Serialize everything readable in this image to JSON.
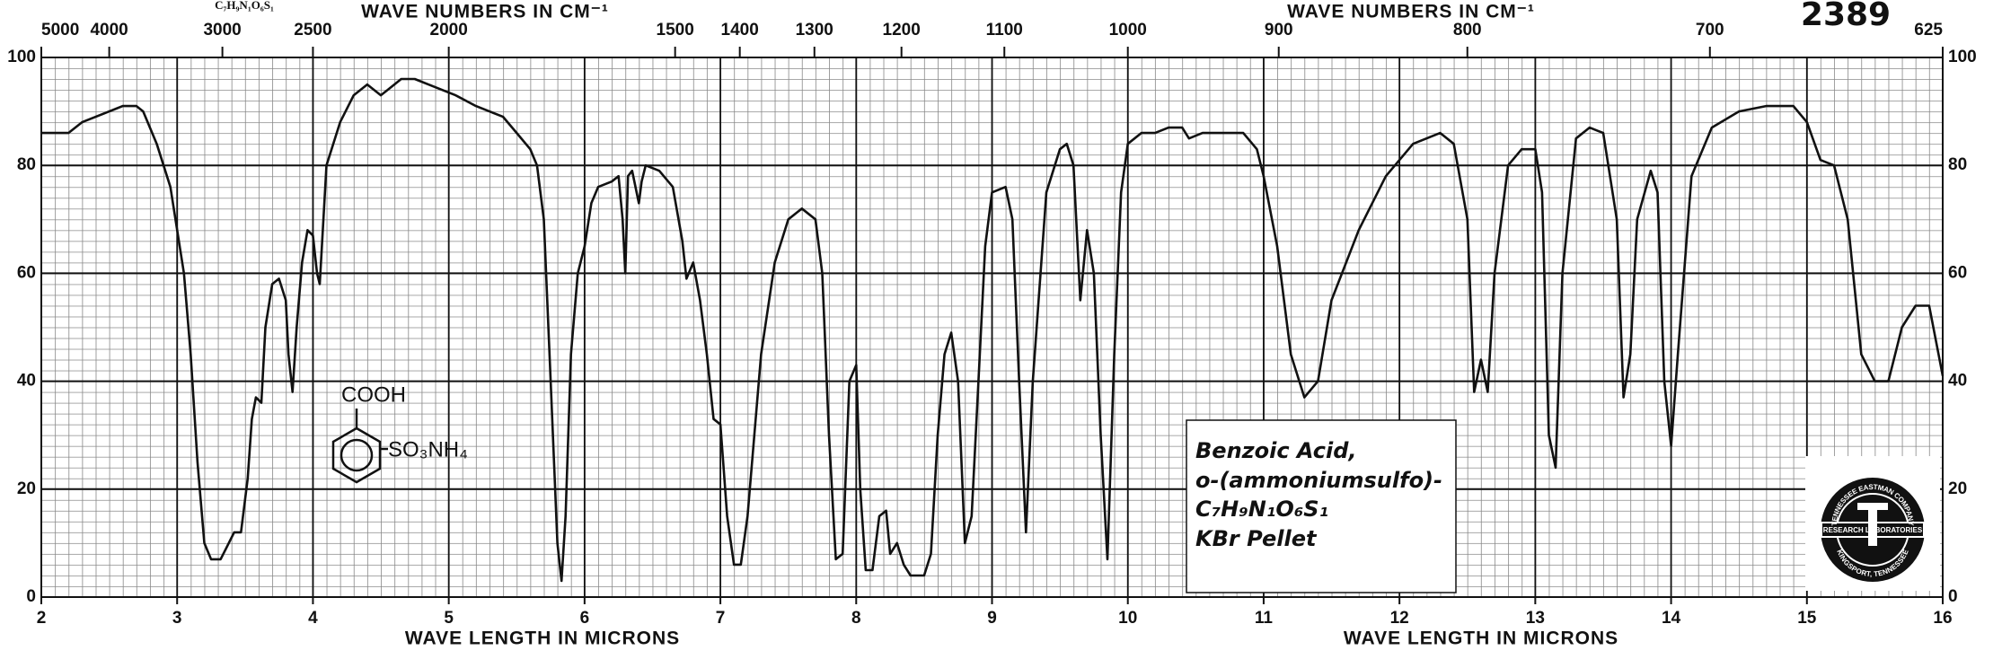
{
  "chart_data": {
    "type": "line",
    "catalog_number": "2389",
    "formula_header": "C₇H₉N₁O₆S₁",
    "x_label": "WAVE LENGTH IN MICRONS",
    "top_axis": {
      "label": "WAVE NUMBERS IN CM⁻¹",
      "ticks": [
        5000,
        4000,
        3000,
        2500,
        2000,
        1500,
        1400,
        1300,
        1200,
        1100,
        1000,
        900,
        800,
        700,
        625
      ]
    },
    "structure": {
      "top_group": "COOH",
      "side_group": "SO₃NH₄"
    },
    "annotation": [
      "Benzoic Acid,",
      "o-(ammoniumsulfo)-",
      "C₇H₉N₁O₆S₁",
      "KBr Pellet"
    ],
    "logo": {
      "top": "TENNESSEE EASTMAN COMPANY",
      "band": "RESEARCH LABORATORIES",
      "bottom": "KINGSPORT, TENNESSEE"
    },
    "xlim": [
      2,
      16
    ],
    "xticks": [
      2,
      3,
      4,
      5,
      6,
      7,
      8,
      9,
      10,
      11,
      12,
      13,
      14,
      15,
      16
    ],
    "ylim": [
      0,
      100
    ],
    "yticks": [
      0,
      20,
      40,
      60,
      80,
      100
    ],
    "grid": true,
    "x": [
      2.0,
      2.2,
      2.3,
      2.5,
      2.6,
      2.7,
      2.75,
      2.85,
      2.95,
      3.05,
      3.1,
      3.15,
      3.2,
      3.25,
      3.32,
      3.38,
      3.42,
      3.47,
      3.52,
      3.55,
      3.58,
      3.62,
      3.65,
      3.7,
      3.75,
      3.8,
      3.82,
      3.85,
      3.88,
      3.92,
      3.96,
      4.0,
      4.03,
      4.05,
      4.1,
      4.2,
      4.3,
      4.4,
      4.5,
      4.55,
      4.65,
      4.75,
      4.85,
      4.95,
      5.05,
      5.2,
      5.4,
      5.5,
      5.6,
      5.65,
      5.7,
      5.75,
      5.8,
      5.83,
      5.86,
      5.9,
      5.95,
      6.0,
      6.05,
      6.1,
      6.2,
      6.25,
      6.28,
      6.3,
      6.32,
      6.35,
      6.4,
      6.42,
      6.45,
      6.55,
      6.65,
      6.72,
      6.75,
      6.8,
      6.85,
      6.9,
      6.95,
      7.0,
      7.05,
      7.1,
      7.15,
      7.2,
      7.3,
      7.4,
      7.5,
      7.6,
      7.7,
      7.75,
      7.8,
      7.85,
      7.9,
      7.95,
      8.0,
      8.03,
      8.07,
      8.12,
      8.17,
      8.22,
      8.25,
      8.3,
      8.35,
      8.4,
      8.5,
      8.55,
      8.6,
      8.65,
      8.7,
      8.75,
      8.8,
      8.85,
      8.9,
      8.95,
      9.0,
      9.1,
      9.15,
      9.2,
      9.25,
      9.3,
      9.4,
      9.5,
      9.55,
      9.6,
      9.65,
      9.7,
      9.75,
      9.8,
      9.85,
      9.9,
      9.95,
      10.0,
      10.1,
      10.2,
      10.3,
      10.4,
      10.45,
      10.55,
      10.7,
      10.85,
      10.95,
      11.0,
      11.1,
      11.2,
      11.3,
      11.4,
      11.5,
      11.7,
      11.9,
      12.1,
      12.3,
      12.4,
      12.5,
      12.55,
      12.6,
      12.65,
      12.7,
      12.8,
      12.9,
      13.0,
      13.05,
      13.1,
      13.15,
      13.2,
      13.3,
      13.4,
      13.5,
      13.6,
      13.65,
      13.7,
      13.75,
      13.85,
      13.9,
      13.95,
      14.0,
      14.05,
      14.15,
      14.3,
      14.5,
      14.7,
      14.9,
      15.0,
      15.1,
      15.2,
      15.3,
      15.4,
      15.5,
      15.6,
      15.7,
      15.8,
      15.9,
      16.0
    ],
    "series": [
      {
        "color": "#111111",
        "values": [
          86,
          86,
          88,
          90,
          91,
          91,
          90,
          84,
          76,
          60,
          45,
          25,
          10,
          7,
          7,
          10,
          12,
          12,
          22,
          33,
          37,
          36,
          50,
          58,
          59,
          55,
          45,
          38,
          50,
          62,
          68,
          67,
          60,
          58,
          80,
          88,
          93,
          95,
          93,
          94,
          96,
          96,
          95,
          94,
          93,
          91,
          89,
          86,
          83,
          80,
          70,
          40,
          10,
          3,
          15,
          45,
          60,
          65,
          73,
          76,
          77,
          78,
          70,
          60,
          78,
          79,
          73,
          77,
          80,
          79,
          76,
          66,
          59,
          62,
          55,
          45,
          33,
          32,
          15,
          6,
          6,
          15,
          45,
          62,
          70,
          72,
          70,
          60,
          30,
          7,
          8,
          40,
          43,
          20,
          5,
          5,
          15,
          16,
          8,
          10,
          6,
          4,
          4,
          8,
          30,
          45,
          49,
          40,
          10,
          15,
          40,
          65,
          75,
          76,
          70,
          40,
          12,
          40,
          75,
          83,
          84,
          80,
          55,
          68,
          60,
          30,
          7,
          45,
          75,
          84,
          86,
          86,
          87,
          87,
          85,
          86,
          86,
          86,
          83,
          78,
          65,
          45,
          37,
          40,
          55,
          68,
          78,
          84,
          86,
          84,
          70,
          38,
          44,
          38,
          60,
          80,
          83,
          83,
          75,
          30,
          24,
          60,
          85,
          87,
          86,
          70,
          37,
          45,
          70,
          79,
          75,
          40,
          28,
          45,
          78,
          87,
          90,
          91,
          91,
          88,
          81,
          80,
          70,
          45,
          40,
          40,
          50,
          54,
          54,
          41
        ]
      }
    ]
  }
}
